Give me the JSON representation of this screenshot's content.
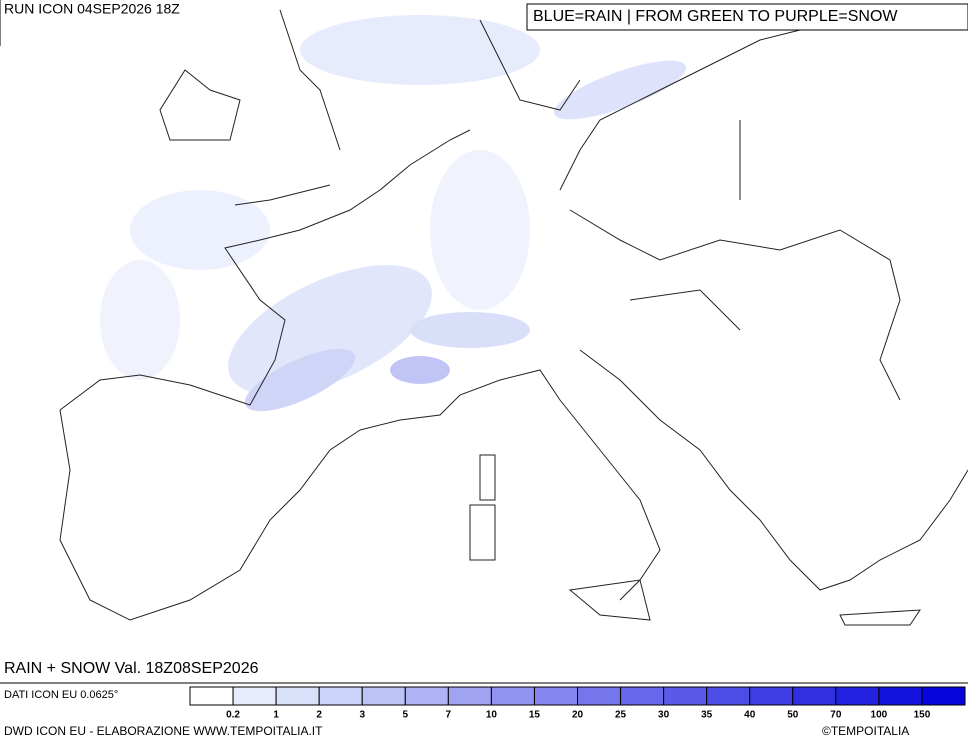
{
  "header": {
    "run": "RUN ICON 04SEP2026 18Z",
    "legend_note": "BLUE=RAIN | FROM GREEN TO PURPLE=SNOW"
  },
  "map": {
    "validity": "RAIN + SNOW Val. 18Z08SEP2026"
  },
  "footer": {
    "data_source": "DATI ICON EU 0.0625°",
    "credit": "DWD ICON EU - ELABORAZIONE WWW.TEMPOITALIA.IT",
    "copyright": "©TEMPOITALIA"
  },
  "colorbar": {
    "levels": [
      0.2,
      1,
      2,
      3,
      5,
      7,
      10,
      15,
      20,
      25,
      30,
      35,
      40,
      50,
      70,
      100,
      150
    ],
    "colors": [
      "#ffffff",
      "#e6ecfb",
      "#d8e0fa",
      "#cbd3f8",
      "#bcc4f6",
      "#adb3f4",
      "#9fa3f2",
      "#9194f0",
      "#8485ee",
      "#7676ec",
      "#6868ea",
      "#5a5ae8",
      "#4c4ce6",
      "#3e3ee4",
      "#3030e2",
      "#2222e0",
      "#1414de",
      "#0606dc"
    ]
  }
}
